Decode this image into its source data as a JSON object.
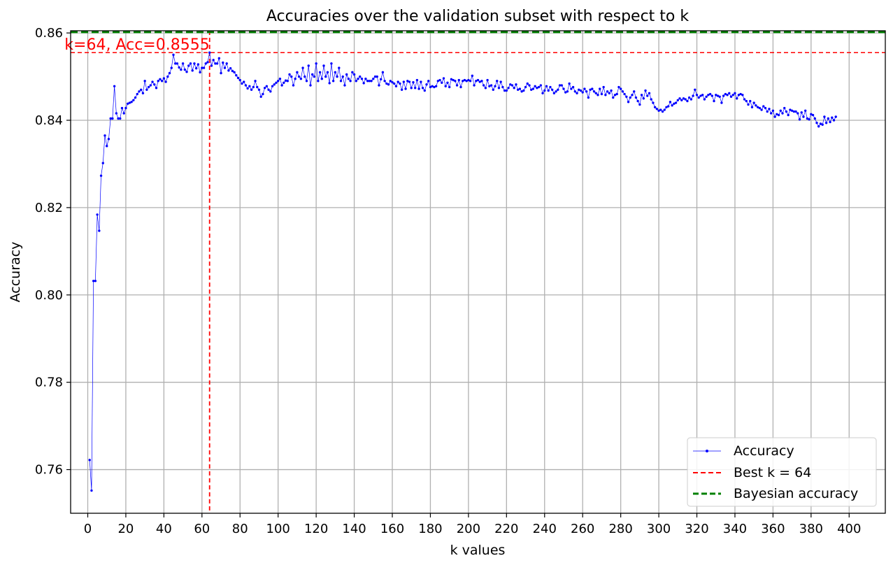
{
  "chart_data": {
    "type": "line",
    "title": "Accuracies over the validation subset with respect to k",
    "xlabel": "k values",
    "ylabel": "Accuracy",
    "xlim": [
      -9,
      419
    ],
    "ylim": [
      0.75,
      0.8605
    ],
    "xticks": [
      0,
      20,
      40,
      60,
      80,
      100,
      120,
      140,
      160,
      180,
      200,
      220,
      240,
      260,
      280,
      300,
      320,
      340,
      360,
      380,
      400
    ],
    "xtick_labels": [
      "0",
      "20",
      "40",
      "60",
      "80",
      "100",
      "120",
      "140",
      "160",
      "180",
      "200",
      "220",
      "240",
      "260",
      "280",
      "300",
      "320",
      "340",
      "360",
      "380",
      "400"
    ],
    "yticks": [
      0.76,
      0.78,
      0.8,
      0.82,
      0.84,
      0.86
    ],
    "ytick_labels": [
      "0.76",
      "0.78",
      "0.80",
      "0.82",
      "0.84",
      "0.86"
    ],
    "grid": true,
    "legend_position": "lower-right",
    "series": [
      {
        "name": "Accuracy",
        "color": "#0000ff",
        "style": "line-with-markers",
        "x_start": 1,
        "x_step": 1,
        "values": [
          0.7622,
          0.7552,
          0.8032,
          0.8032,
          0.8184,
          0.8147,
          0.8273,
          0.8302,
          0.8365,
          0.8341,
          0.8357,
          0.8404,
          0.8404,
          0.8478,
          0.8416,
          0.8404,
          0.8404,
          0.8428,
          0.8416,
          0.8428,
          0.8438,
          0.844,
          0.8442,
          0.8446,
          0.8452,
          0.846,
          0.8466,
          0.847,
          0.8462,
          0.849,
          0.847,
          0.8476,
          0.848,
          0.8488,
          0.8482,
          0.8474,
          0.849,
          0.8494,
          0.849,
          0.8496,
          0.8488,
          0.85,
          0.8508,
          0.852,
          0.855,
          0.853,
          0.853,
          0.8521,
          0.8516,
          0.853,
          0.8516,
          0.8511,
          0.8525,
          0.853,
          0.8514,
          0.853,
          0.8519,
          0.8528,
          0.851,
          0.852,
          0.852,
          0.853,
          0.8533,
          0.8555,
          0.8525,
          0.8538,
          0.853,
          0.853,
          0.8542,
          0.8508,
          0.8532,
          0.852,
          0.853,
          0.8514,
          0.8519,
          0.8513,
          0.851,
          0.8503,
          0.8497,
          0.8492,
          0.8484,
          0.8488,
          0.848,
          0.8473,
          0.8478,
          0.847,
          0.8476,
          0.849,
          0.8476,
          0.847,
          0.8454,
          0.846,
          0.8474,
          0.8478,
          0.847,
          0.8466,
          0.8478,
          0.8482,
          0.8486,
          0.849,
          0.8495,
          0.848,
          0.8486,
          0.8491,
          0.849,
          0.8505,
          0.85,
          0.848,
          0.8495,
          0.851,
          0.85,
          0.8495,
          0.852,
          0.85,
          0.849,
          0.8525,
          0.848,
          0.8505,
          0.85,
          0.853,
          0.849,
          0.851,
          0.8495,
          0.8525,
          0.85,
          0.851,
          0.8485,
          0.853,
          0.849,
          0.851,
          0.85,
          0.852,
          0.849,
          0.85,
          0.848,
          0.8505,
          0.8495,
          0.849,
          0.851,
          0.8505,
          0.849,
          0.8495,
          0.85,
          0.8495,
          0.8485,
          0.8495,
          0.849,
          0.849,
          0.849,
          0.8495,
          0.85,
          0.85,
          0.848,
          0.8494,
          0.851,
          0.849,
          0.8484,
          0.8482,
          0.849,
          0.8487,
          0.8484,
          0.8478,
          0.8488,
          0.8484,
          0.847,
          0.8488,
          0.8472,
          0.849,
          0.8488,
          0.8474,
          0.8487,
          0.8474,
          0.8492,
          0.8472,
          0.8488,
          0.8474,
          0.8468,
          0.8482,
          0.849,
          0.8476,
          0.8478,
          0.8476,
          0.8478,
          0.849,
          0.8492,
          0.8486,
          0.8496,
          0.8478,
          0.8486,
          0.8476,
          0.8494,
          0.8492,
          0.849,
          0.848,
          0.8492,
          0.8476,
          0.849,
          0.8492,
          0.849,
          0.8492,
          0.849,
          0.8502,
          0.848,
          0.849,
          0.8492,
          0.8488,
          0.849,
          0.848,
          0.8474,
          0.8492,
          0.8478,
          0.848,
          0.847,
          0.8478,
          0.849,
          0.8474,
          0.8488,
          0.8476,
          0.8468,
          0.8468,
          0.8474,
          0.8482,
          0.848,
          0.8474,
          0.8482,
          0.847,
          0.8472,
          0.8466,
          0.8468,
          0.8476,
          0.8484,
          0.848,
          0.847,
          0.8472,
          0.8478,
          0.8474,
          0.8476,
          0.848,
          0.8462,
          0.8468,
          0.8478,
          0.8468,
          0.8476,
          0.847,
          0.8462,
          0.8466,
          0.847,
          0.848,
          0.848,
          0.8472,
          0.8464,
          0.8466,
          0.8484,
          0.8472,
          0.8476,
          0.8466,
          0.8462,
          0.847,
          0.8468,
          0.8464,
          0.8472,
          0.8466,
          0.8452,
          0.847,
          0.8472,
          0.8466,
          0.8462,
          0.8458,
          0.8472,
          0.846,
          0.8476,
          0.8458,
          0.8466,
          0.8462,
          0.8468,
          0.8452,
          0.8458,
          0.846,
          0.8476,
          0.8472,
          0.8466,
          0.846,
          0.8454,
          0.8442,
          0.8452,
          0.8458,
          0.8466,
          0.8452,
          0.8444,
          0.8436,
          0.8458,
          0.845,
          0.8468,
          0.8456,
          0.8462,
          0.8448,
          0.844,
          0.843,
          0.8426,
          0.8422,
          0.8424,
          0.842,
          0.8424,
          0.843,
          0.8432,
          0.8442,
          0.8434,
          0.8438,
          0.844,
          0.8446,
          0.845,
          0.8446,
          0.845,
          0.8448,
          0.8444,
          0.8452,
          0.8448,
          0.8456,
          0.847,
          0.8458,
          0.8452,
          0.8456,
          0.8458,
          0.8448,
          0.8454,
          0.8458,
          0.846,
          0.8456,
          0.8444,
          0.8458,
          0.8456,
          0.8454,
          0.844,
          0.8456,
          0.846,
          0.8458,
          0.8462,
          0.8454,
          0.8458,
          0.8462,
          0.845,
          0.8458,
          0.846,
          0.8458,
          0.8448,
          0.8444,
          0.8436,
          0.8444,
          0.843,
          0.844,
          0.8434,
          0.843,
          0.8428,
          0.8424,
          0.8432,
          0.8428,
          0.842,
          0.8426,
          0.8416,
          0.8422,
          0.8408,
          0.8414,
          0.8412,
          0.8422,
          0.8416,
          0.8428,
          0.842,
          0.8412,
          0.8424,
          0.8422,
          0.842,
          0.842,
          0.8416,
          0.8402,
          0.8418,
          0.8408,
          0.8422,
          0.8404,
          0.8402,
          0.8414,
          0.8412,
          0.8404,
          0.8394,
          0.8386,
          0.8392,
          0.839,
          0.8408,
          0.8394,
          0.8404,
          0.8396,
          0.8406,
          0.84,
          0.8408
        ]
      },
      {
        "name": "Best k = 64",
        "color": "#ff0000",
        "style": "dashed-vertical",
        "x": 64,
        "y": 0.8555
      },
      {
        "name": "Bayesian accuracy",
        "color": "#008000",
        "style": "dashed-horizontal",
        "y": 0.8602
      }
    ],
    "annotations": [
      {
        "text": "k=64, Acc=0.8555",
        "color": "#ff0000",
        "x": 64,
        "y": 0.8555
      }
    ]
  }
}
